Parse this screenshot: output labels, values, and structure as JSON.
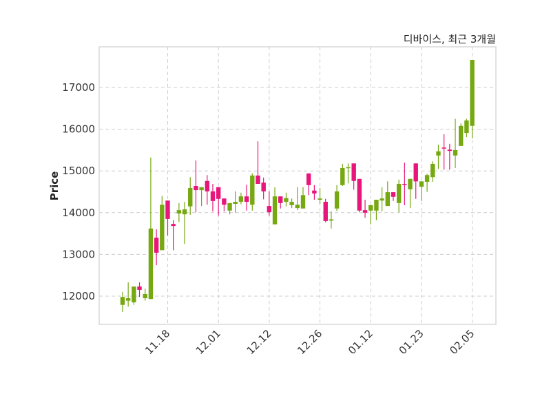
{
  "chart_data": {
    "type": "candlestick",
    "title": "디바이스, 최근 3개월",
    "xlabel": "",
    "ylabel": "Price",
    "ylim": [
      11323,
      17974
    ],
    "xlim": [
      -4.15,
      66.2
    ],
    "grid": true,
    "colors": {
      "up": "#76a812",
      "down": "#e8157a",
      "grid": "#cccccc",
      "frame": "#d9d9d9"
    },
    "yticks": [
      12000,
      13000,
      14000,
      15000,
      16000,
      17000
    ],
    "xticks": [
      {
        "index": 8,
        "label": "11.18"
      },
      {
        "index": 17,
        "label": "12.01"
      },
      {
        "index": 26,
        "label": "12.12"
      },
      {
        "index": 35,
        "label": "12.26"
      },
      {
        "index": 44,
        "label": "01.12"
      },
      {
        "index": 53,
        "label": "01.23"
      },
      {
        "index": 62,
        "label": "02.05"
      }
    ],
    "ohlc": [
      [
        11790,
        12100,
        11620,
        11980
      ],
      [
        11890,
        12330,
        11750,
        11950
      ],
      [
        11850,
        12230,
        11790,
        12230
      ],
      [
        12230,
        12330,
        11980,
        12150
      ],
      [
        11950,
        12180,
        11890,
        12050
      ],
      [
        11930,
        15320,
        11930,
        13620
      ],
      [
        13400,
        13600,
        12740,
        13040
      ],
      [
        13100,
        14400,
        13100,
        14190
      ],
      [
        14290,
        14290,
        13450,
        13850
      ],
      [
        13730,
        13820,
        13100,
        13680
      ],
      [
        13980,
        14230,
        13780,
        14060
      ],
      [
        13960,
        14260,
        13250,
        14080
      ],
      [
        14150,
        14850,
        13950,
        14590
      ],
      [
        14640,
        15250,
        14010,
        14540
      ],
      [
        14540,
        14610,
        14160,
        14610
      ],
      [
        14760,
        14900,
        14190,
        14510
      ],
      [
        14510,
        14690,
        14030,
        14280
      ],
      [
        14610,
        14610,
        13930,
        14330
      ],
      [
        14340,
        14340,
        14030,
        14190
      ],
      [
        14050,
        14230,
        13960,
        14230
      ],
      [
        14210,
        14510,
        14000,
        14260
      ],
      [
        14260,
        14480,
        14200,
        14390
      ],
      [
        14390,
        14670,
        14050,
        14260
      ],
      [
        14190,
        14940,
        14050,
        14890
      ],
      [
        14890,
        15710,
        14690,
        14690
      ],
      [
        14720,
        14840,
        14320,
        14510
      ],
      [
        14160,
        14510,
        13930,
        14010
      ],
      [
        13720,
        14610,
        13720,
        14390
      ],
      [
        14390,
        14390,
        14100,
        14230
      ],
      [
        14260,
        14480,
        14150,
        14350
      ],
      [
        14180,
        14340,
        14110,
        14260
      ],
      [
        14110,
        14610,
        14060,
        14190
      ],
      [
        14100,
        14610,
        14100,
        14420
      ],
      [
        14940,
        14940,
        14420,
        14660
      ],
      [
        14530,
        14660,
        14310,
        14460
      ],
      [
        14310,
        14590,
        14210,
        14340
      ],
      [
        14260,
        14330,
        13770,
        13800
      ],
      [
        13810,
        14030,
        13620,
        13840
      ],
      [
        14100,
        14660,
        14040,
        14510
      ],
      [
        14660,
        15170,
        14640,
        15070
      ],
      [
        15070,
        15180,
        14700,
        15090
      ],
      [
        15180,
        15180,
        14550,
        14760
      ],
      [
        14810,
        14810,
        14010,
        14050
      ],
      [
        14060,
        14310,
        13880,
        14000
      ],
      [
        14050,
        14180,
        13720,
        14180
      ],
      [
        14050,
        14310,
        13820,
        14310
      ],
      [
        14290,
        14610,
        14030,
        14340
      ],
      [
        14160,
        14750,
        14160,
        14490
      ],
      [
        14490,
        14490,
        14280,
        14380
      ],
      [
        14230,
        14790,
        14010,
        14690
      ],
      [
        14690,
        15200,
        14180,
        14670
      ],
      [
        14560,
        14810,
        14110,
        14810
      ],
      [
        15180,
        15180,
        14330,
        14750
      ],
      [
        14620,
        14750,
        14280,
        14750
      ],
      [
        14740,
        14930,
        14500,
        14900
      ],
      [
        14850,
        15230,
        14740,
        15170
      ],
      [
        15370,
        15630,
        15050,
        15470
      ],
      [
        15560,
        15880,
        15030,
        15540
      ],
      [
        15510,
        15650,
        15030,
        15480
      ],
      [
        15370,
        16250,
        15070,
        15500
      ],
      [
        15600,
        16140,
        15600,
        16080
      ],
      [
        15910,
        16250,
        15810,
        16210
      ],
      [
        16080,
        17660,
        15780,
        17660
      ]
    ]
  }
}
